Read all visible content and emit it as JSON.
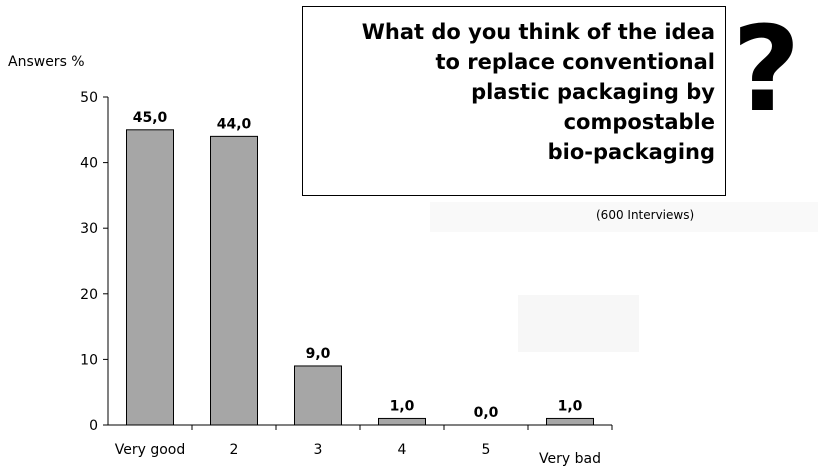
{
  "question": {
    "lines": [
      "What do you think of the idea",
      "to replace conventional",
      "plastic packaging by",
      "compostable",
      "bio-packaging"
    ]
  },
  "question_mark": "?",
  "note": "(600 Interviews)",
  "colors": {
    "bar": "#a6a6a6",
    "bar_stroke": "#000000"
  },
  "chart_data": {
    "type": "bar",
    "title": "",
    "xlabel": "",
    "ylabel": "Answers %",
    "categories": [
      "Very good",
      "2",
      "3",
      "4",
      "5",
      "Very bad"
    ],
    "values": [
      45.0,
      44.0,
      9.0,
      1.0,
      0.0,
      1.0
    ],
    "value_labels": [
      "45,0",
      "44,0",
      "9,0",
      "1,0",
      "0,0",
      "1,0"
    ],
    "ylim": [
      0,
      50
    ],
    "yticks": [
      0,
      10,
      20,
      30,
      40,
      50
    ],
    "grid": false,
    "legend": "none"
  }
}
